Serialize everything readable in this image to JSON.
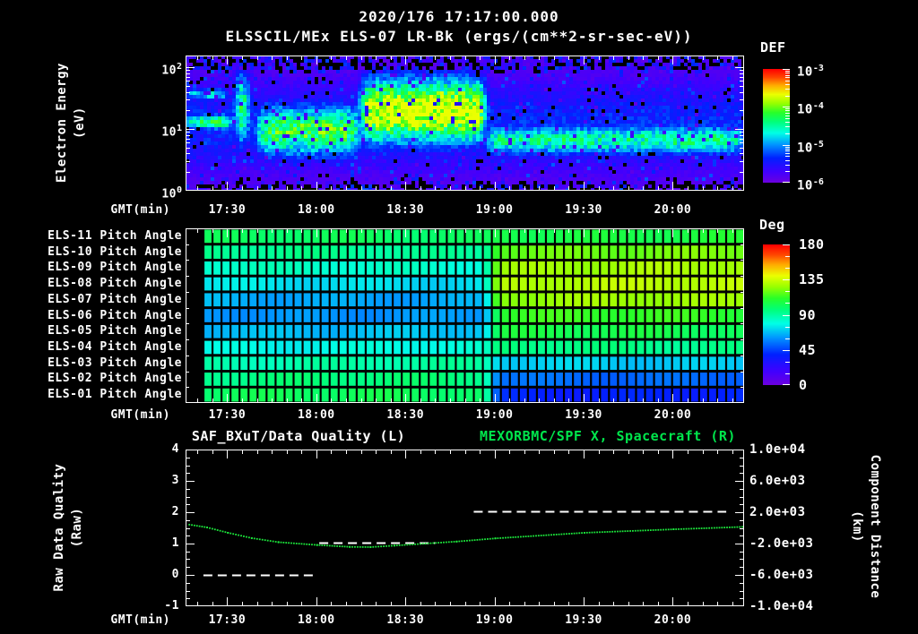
{
  "header": {
    "timestamp": "2020/176 17:17:00.000",
    "instrument_title": "ELSSCIL/MEx ELS-07 LR-Bk  (ergs/(cm**2-sr-sec-eV))"
  },
  "time_axis": {
    "label": "GMT(min)",
    "xlim_gmt": [
      "17:16",
      "20:24"
    ],
    "tick_labels": [
      "17:30",
      "18:00",
      "18:30",
      "19:00",
      "19:30",
      "20:00"
    ],
    "minor_step_min": 5,
    "major_step_min": 30
  },
  "colors": {
    "text": "#ffffff",
    "accent_green": "#00e64c",
    "background": "#000000"
  },
  "chart_data": [
    {
      "id": "electron_energy_spectrogram",
      "type": "heatmap",
      "ylabel_lines": [
        "Electron Energy",
        "(eV)"
      ],
      "yscale": "log",
      "ylim_ev": [
        1,
        155
      ],
      "ytick_labels": [
        "10^2",
        "10^1",
        "10^0"
      ],
      "colorbar": {
        "label": "DEF",
        "tick_labels": [
          "10^-3",
          "10^-4",
          "10^-5",
          "10^-6"
        ],
        "range_exp": [
          -6,
          -3
        ]
      },
      "features": [
        {
          "gmt": [
            "17:16",
            "17:33"
          ],
          "energy_ev": [
            10,
            17
          ],
          "level": 0.55,
          "desc": "narrow cyan-green band"
        },
        {
          "gmt": [
            "17:16",
            "17:31"
          ],
          "energy_ev": [
            30,
            44
          ],
          "level": 0.42,
          "desc": "faint thin band near 35 eV"
        },
        {
          "gmt": [
            "17:33",
            "17:37"
          ],
          "energy_ev": [
            6,
            70
          ],
          "level": 0.78,
          "desc": "bright vertical burst"
        },
        {
          "gmt": [
            "17:40",
            "18:15"
          ],
          "energy_ev": [
            4,
            22
          ],
          "level": 0.6,
          "desc": "broad green band"
        },
        {
          "gmt": [
            "18:15",
            "18:57"
          ],
          "energy_ev": [
            7,
            55
          ],
          "level": 0.82,
          "desc": "bright yellow-green enhancement"
        },
        {
          "gmt": [
            "18:57",
            "20:24"
          ],
          "energy_ev": [
            4,
            11
          ],
          "level": 0.5,
          "desc": "persistent cyan band"
        }
      ],
      "diffuse": {
        "energy_ev": [
          2.5,
          50
        ],
        "level": 0.22
      }
    },
    {
      "id": "pitch_angle_panels",
      "type": "heatmap",
      "data_start_gmt": "17:22",
      "transition_gmt": "18:59",
      "rows": [
        {
          "label": "ELS-11 Pitch Angle",
          "deg_early": 100,
          "deg_late": 107
        },
        {
          "label": "ELS-10 Pitch Angle",
          "deg_early": 92,
          "deg_late": 121
        },
        {
          "label": "ELS-09 Pitch Angle",
          "deg_early": 84,
          "deg_late": 128
        },
        {
          "label": "ELS-08 Pitch Angle",
          "deg_early": 74,
          "deg_late": 131
        },
        {
          "label": "ELS-07 Pitch Angle",
          "deg_early": 65,
          "deg_late": 126
        },
        {
          "label": "ELS-06 Pitch Angle",
          "deg_early": 62,
          "deg_late": 112
        },
        {
          "label": "ELS-05 Pitch Angle",
          "deg_early": 69,
          "deg_late": 104
        },
        {
          "label": "ELS-04 Pitch Angle",
          "deg_early": 79,
          "deg_late": 95
        },
        {
          "label": "ELS-03 Pitch Angle",
          "deg_early": 89,
          "deg_late": 71
        },
        {
          "label": "ELS-02 Pitch Angle",
          "deg_early": 96,
          "deg_late": 54
        },
        {
          "label": "ELS-01 Pitch Angle",
          "deg_early": 101,
          "deg_late": 40
        }
      ],
      "colorbar": {
        "label": "Deg",
        "tick_labels": [
          "180",
          "135",
          "90",
          "45",
          "0"
        ],
        "range_deg": [
          0,
          180
        ]
      }
    },
    {
      "id": "quality_and_distance",
      "type": "line",
      "title_left": "SAF_BXuT/Data Quality (L)",
      "title_right": "MEXORBMC/SPF X, Spacecraft (R)",
      "ylabel_left_lines": [
        "Raw Data Quality",
        "(Raw)"
      ],
      "ylabel_right_lines": [
        "Component Distance",
        "(km)"
      ],
      "ylim_left": [
        -1,
        4
      ],
      "ytick_labels_left": [
        "4",
        "3",
        "2",
        "1",
        "0",
        "-1"
      ],
      "ylim_right": [
        -10000,
        10000
      ],
      "ytick_labels_right": [
        "1.0e+04",
        "6.0e+03",
        "2.0e+03",
        "-2.0e+03",
        "-6.0e+03",
        "-1.0e+04"
      ],
      "series": [
        {
          "name": "SAF_BXuT/Data Quality",
          "axis": "left",
          "style": "dashed",
          "color": "#ffffff",
          "segments": [
            {
              "gmt": [
                "17:22",
                "18:00"
              ],
              "value": 0.0
            },
            {
              "gmt": [
                "18:01",
                "18:40"
              ],
              "value": 1.03
            },
            {
              "gmt": [
                "18:53",
                "20:18"
              ],
              "value": 2.03
            }
          ]
        },
        {
          "name": "MEXORBMC/SPF X Spacecraft",
          "axis": "right",
          "style": "dotted",
          "color": "#1ce83c",
          "points_gmt_km": [
            [
              "17:17",
              520
            ],
            [
              "17:23",
              160
            ],
            [
              "17:30",
              -520
            ],
            [
              "17:38",
              -1200
            ],
            [
              "17:47",
              -1720
            ],
            [
              "18:00",
              -2080
            ],
            [
              "18:11",
              -2320
            ],
            [
              "18:18",
              -2350
            ],
            [
              "18:26",
              -2160
            ],
            [
              "18:47",
              -1640
            ],
            [
              "19:00",
              -1240
            ],
            [
              "19:30",
              -520
            ],
            [
              "20:00",
              -80
            ],
            [
              "20:24",
              240
            ]
          ]
        }
      ]
    }
  ]
}
